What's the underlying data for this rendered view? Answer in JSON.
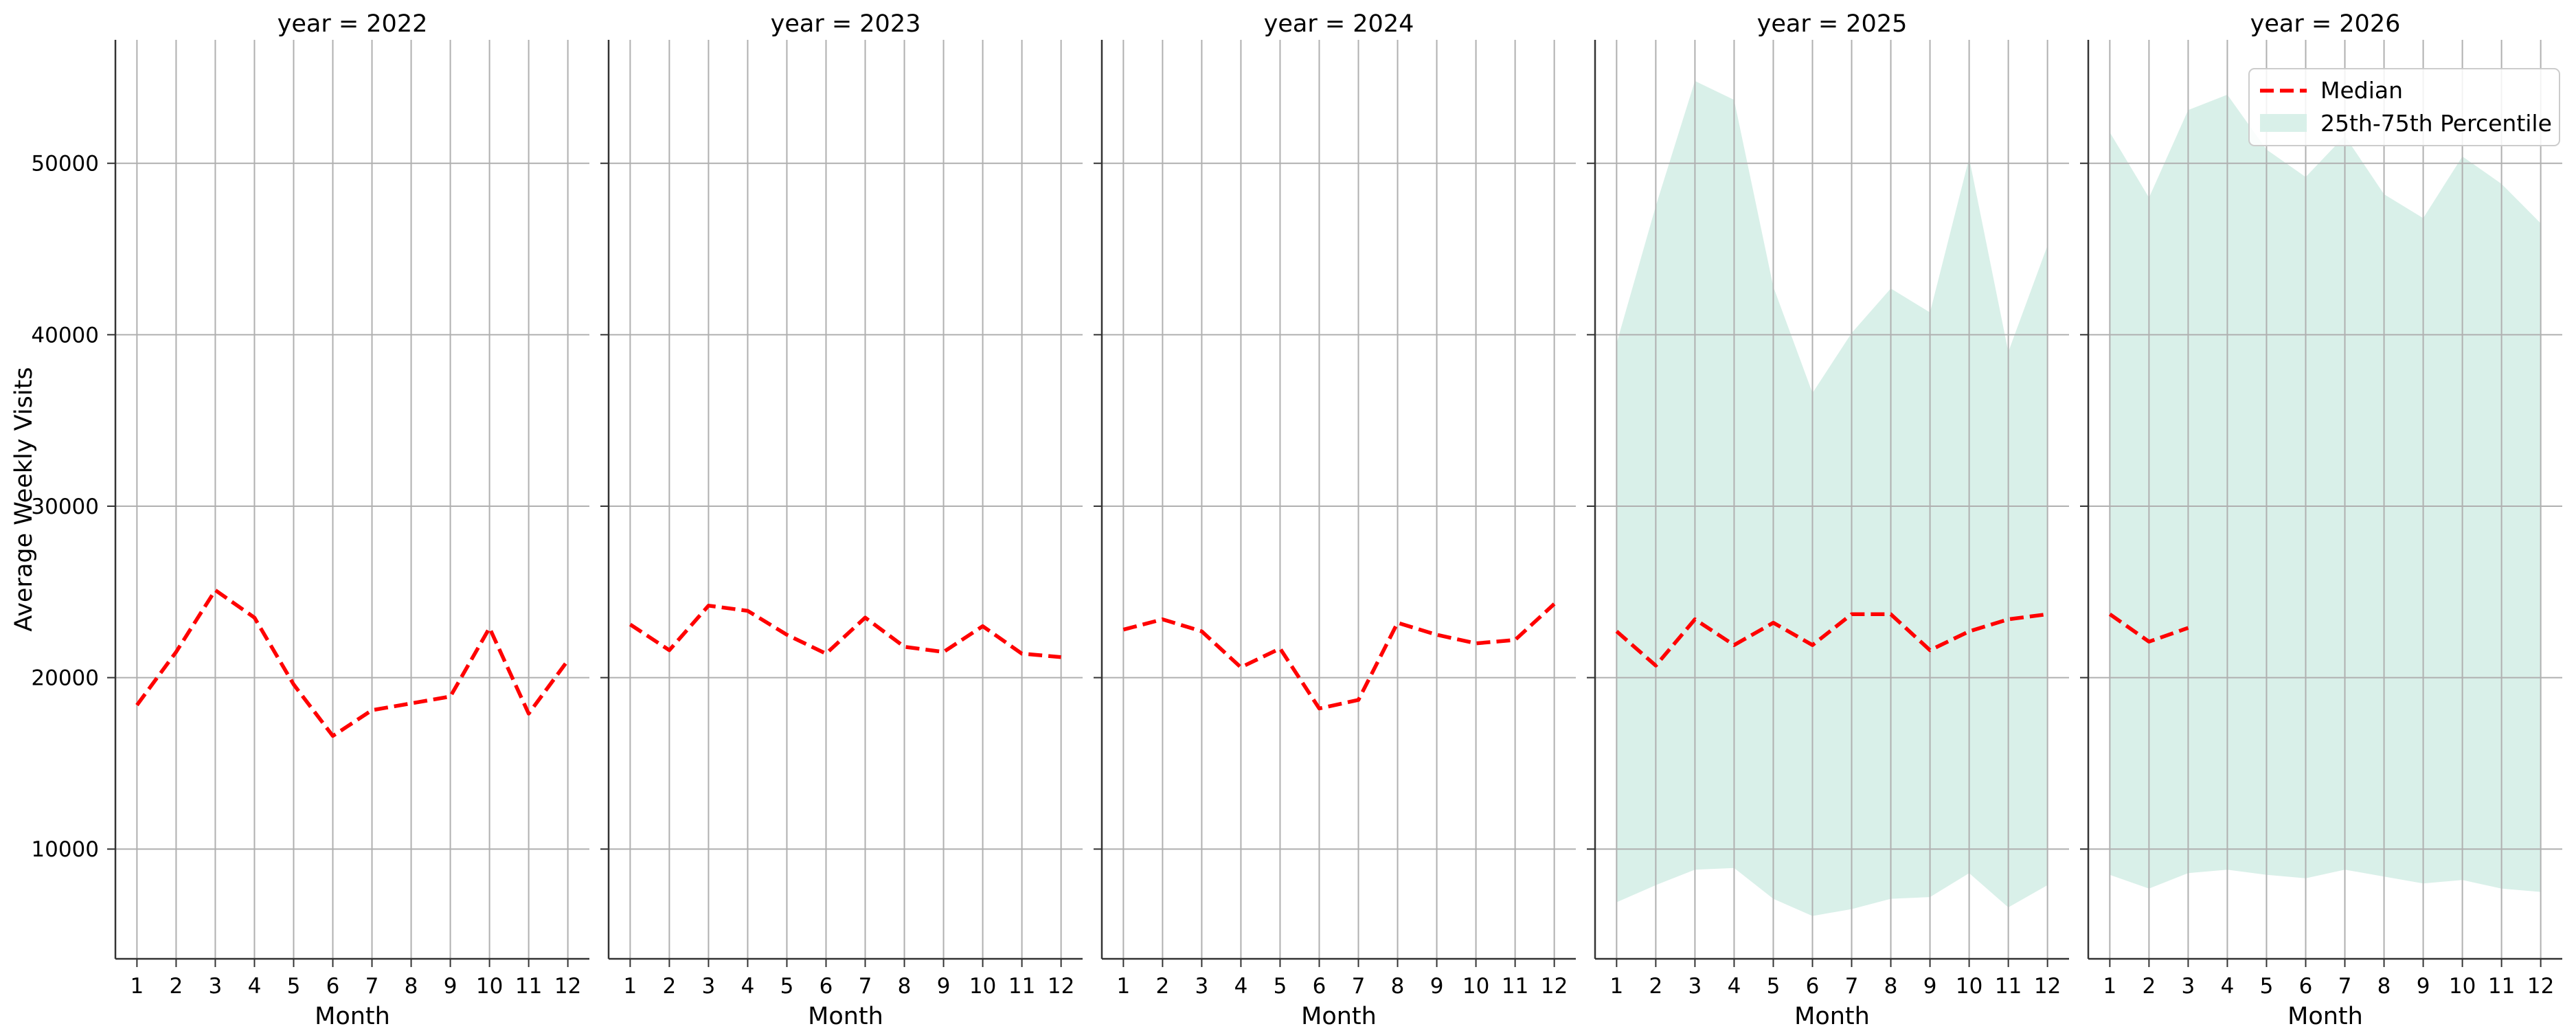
{
  "chart_data": {
    "type": "line",
    "layout": "facet-grid",
    "facet_label_prefix": "year = ",
    "ylabel": "Average Weekly Visits",
    "xlabel": "Month",
    "x_ticks": [
      1,
      2,
      3,
      4,
      5,
      6,
      7,
      8,
      9,
      10,
      11,
      12
    ],
    "y_ticks": [
      10000,
      20000,
      30000,
      40000,
      50000
    ],
    "ylim": [
      3600,
      57200
    ],
    "xlim": [
      0.45,
      12.55
    ],
    "grid": true,
    "legend": {
      "placement": "top-right",
      "entries": [
        {
          "label": "Median",
          "style": "dashed-line",
          "color": "#ff0000"
        },
        {
          "label": "25th-75th Percentile",
          "style": "band",
          "color": "#d9f0e9"
        }
      ]
    },
    "colors": {
      "median": "#ff0000",
      "band": "#d9f0e9",
      "grid": "#b0b0b0",
      "axis": "#333333",
      "text": "#000000"
    },
    "panels": [
      {
        "year": "2022",
        "title": "year = 2022",
        "median": [
          [
            1,
            18400
          ],
          [
            2,
            21500
          ],
          [
            3,
            25100
          ],
          [
            4,
            23500
          ],
          [
            5,
            19600
          ],
          [
            6,
            16600
          ],
          [
            7,
            18100
          ],
          [
            8,
            18500
          ],
          [
            9,
            18900
          ],
          [
            10,
            22900
          ],
          [
            11,
            17900
          ],
          [
            12,
            21000
          ]
        ],
        "band": []
      },
      {
        "year": "2023",
        "title": "year = 2023",
        "median": [
          [
            1,
            23100
          ],
          [
            2,
            21600
          ],
          [
            3,
            24200
          ],
          [
            4,
            23900
          ],
          [
            5,
            22500
          ],
          [
            6,
            21400
          ],
          [
            7,
            23500
          ],
          [
            8,
            21800
          ],
          [
            9,
            21500
          ],
          [
            10,
            23000
          ],
          [
            11,
            21400
          ],
          [
            12,
            21200
          ]
        ],
        "band": []
      },
      {
        "year": "2024",
        "title": "year = 2024",
        "median": [
          [
            1,
            22800
          ],
          [
            2,
            23400
          ],
          [
            3,
            22700
          ],
          [
            4,
            20600
          ],
          [
            5,
            21700
          ],
          [
            6,
            18200
          ],
          [
            7,
            18700
          ],
          [
            8,
            23200
          ],
          [
            9,
            22500
          ],
          [
            10,
            22000
          ],
          [
            11,
            22200
          ],
          [
            12,
            24300
          ]
        ],
        "band": []
      },
      {
        "year": "2025",
        "title": "year = 2025",
        "median": [
          [
            1,
            22700
          ],
          [
            2,
            20700
          ],
          [
            3,
            23400
          ],
          [
            4,
            21900
          ],
          [
            5,
            23200
          ],
          [
            6,
            21900
          ],
          [
            7,
            23700
          ],
          [
            8,
            23700
          ],
          [
            9,
            21600
          ],
          [
            10,
            22700
          ],
          [
            11,
            23400
          ],
          [
            12,
            23700
          ]
        ],
        "band": [
          {
            "x": 1,
            "lo": 6900,
            "hi": 39500
          },
          {
            "x": 2,
            "lo": 7900,
            "hi": 47500
          },
          {
            "x": 3,
            "lo": 8800,
            "hi": 54800
          },
          {
            "x": 4,
            "lo": 8900,
            "hi": 53700
          },
          {
            "x": 5,
            "lo": 7100,
            "hi": 42800
          },
          {
            "x": 6,
            "lo": 6100,
            "hi": 36600
          },
          {
            "x": 7,
            "lo": 6500,
            "hi": 40100
          },
          {
            "x": 8,
            "lo": 7100,
            "hi": 42700
          },
          {
            "x": 9,
            "lo": 7200,
            "hi": 41300
          },
          {
            "x": 10,
            "lo": 8600,
            "hi": 50300
          },
          {
            "x": 11,
            "lo": 6600,
            "hi": 39000
          },
          {
            "x": 12,
            "lo": 7900,
            "hi": 45200
          }
        ]
      },
      {
        "year": "2026",
        "title": "year = 2026",
        "median": [
          [
            1,
            23700
          ],
          [
            2,
            22100
          ],
          [
            3,
            22900
          ]
        ],
        "band": [
          {
            "x": 1,
            "lo": 8500,
            "hi": 51800
          },
          {
            "x": 2,
            "lo": 7700,
            "hi": 48000
          },
          {
            "x": 3,
            "lo": 8600,
            "hi": 53100
          },
          {
            "x": 4,
            "lo": 8800,
            "hi": 54000
          },
          {
            "x": 5,
            "lo": 8500,
            "hi": 50800
          },
          {
            "x": 6,
            "lo": 8300,
            "hi": 49200
          },
          {
            "x": 7,
            "lo": 8800,
            "hi": 51600
          },
          {
            "x": 8,
            "lo": 8400,
            "hi": 48200
          },
          {
            "x": 9,
            "lo": 8000,
            "hi": 46800
          },
          {
            "x": 10,
            "lo": 8200,
            "hi": 50400
          },
          {
            "x": 11,
            "lo": 7700,
            "hi": 48800
          },
          {
            "x": 12,
            "lo": 7500,
            "hi": 46500
          }
        ]
      }
    ]
  }
}
